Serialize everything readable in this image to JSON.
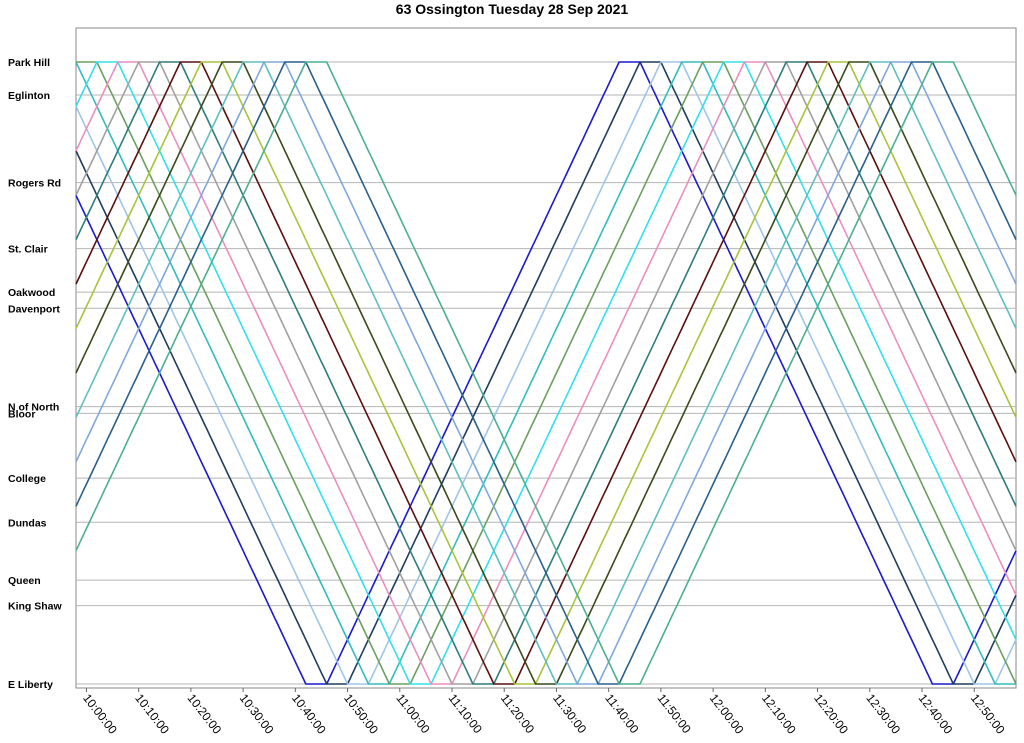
{
  "chart_data": {
    "type": "line",
    "title": "63 Ossington Tuesday 28 Sep 2021",
    "xlabel": "",
    "ylabel": "",
    "grid": true,
    "legend": "none",
    "stops": [
      {
        "name": "Park Hill",
        "pos": 100
      },
      {
        "name": "Eglinton",
        "pos": 94.7
      },
      {
        "name": "Rogers Rd",
        "pos": 80.6
      },
      {
        "name": "St. Clair",
        "pos": 70.0
      },
      {
        "name": "Oakwood",
        "pos": 63.0
      },
      {
        "name": "Davenport",
        "pos": 60.4
      },
      {
        "name": "N of North",
        "pos": 44.6
      },
      {
        "name": "Bloor",
        "pos": 43.5
      },
      {
        "name": "College",
        "pos": 33.1
      },
      {
        "name": "Dundas",
        "pos": 26.0
      },
      {
        "name": "Queen",
        "pos": 16.7
      },
      {
        "name": "King Shaw",
        "pos": 12.6
      },
      {
        "name": "E Liberty",
        "pos": 0
      }
    ],
    "time_ticks": [
      "10:00:00",
      "10:10:00",
      "10:20:00",
      "10:30:00",
      "10:40:00",
      "10:50:00",
      "11:00:00",
      "11:10:00",
      "11:20:00",
      "11:30:00",
      "11:40:00",
      "11:50:00",
      "12:00:00",
      "12:10:00",
      "12:20:00",
      "12:30:00",
      "12:40:00",
      "12:50:00"
    ],
    "x_range_minutes": [
      -2,
      178
    ],
    "y_range": [
      0,
      100
    ],
    "trip_minutes": 56,
    "layover_minutes": 4,
    "series": [
      {
        "color": "#1a1acc",
        "offset_minutes": -14
      },
      {
        "color": "#1f3d5f",
        "offset_minutes": -10
      },
      {
        "color": "#9fc5e8",
        "offset_minutes": -6
      },
      {
        "color": "#33bcbc",
        "offset_minutes": -2
      },
      {
        "color": "#6b9f5f",
        "offset_minutes": 2
      },
      {
        "color": "#33e0ea",
        "offset_minutes": 6
      },
      {
        "color": "#ea8fbf",
        "offset_minutes": 10
      },
      {
        "color": "#a0a0a0",
        "offset_minutes": 14
      },
      {
        "color": "#2e7d7a",
        "offset_minutes": 18
      },
      {
        "color": "#5a1010",
        "offset_minutes": 22
      },
      {
        "color": "#a7c43c",
        "offset_minutes": 26
      },
      {
        "color": "#3a4a1a",
        "offset_minutes": 30
      },
      {
        "color": "#5fbfbf",
        "offset_minutes": 34
      },
      {
        "color": "#7fa8d8",
        "offset_minutes": 38
      },
      {
        "color": "#2a5f8a",
        "offset_minutes": 42
      },
      {
        "color": "#4caf8f",
        "offset_minutes": 46
      }
    ]
  }
}
